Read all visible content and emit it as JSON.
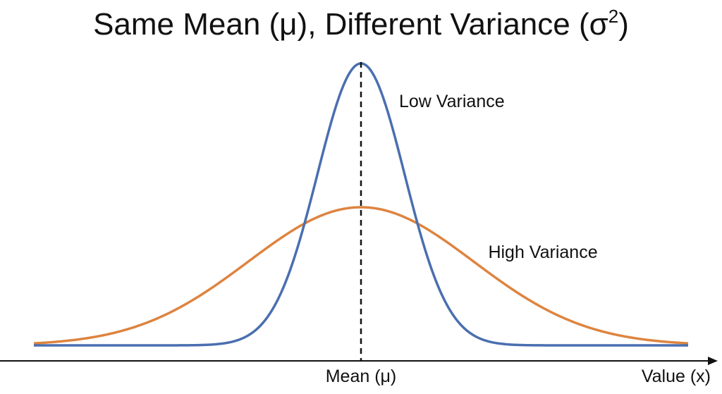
{
  "chart_data": {
    "type": "line",
    "title": "Same Mean (μ), Different Variance (σ²)",
    "xlabel": "Value (x)",
    "mean_label": "Mean (μ)",
    "mean": 0,
    "xlim": [
      -4.5,
      4.5
    ],
    "ylim": [
      0,
      1
    ],
    "grid": false,
    "legend": "none",
    "series": [
      {
        "name": "Low Variance",
        "color": "#4a6fb0",
        "sigma": 0.6,
        "peak": 1.0
      },
      {
        "name": "High Variance",
        "color": "#dd8440",
        "sigma": 1.55,
        "peak": 0.49
      }
    ]
  }
}
